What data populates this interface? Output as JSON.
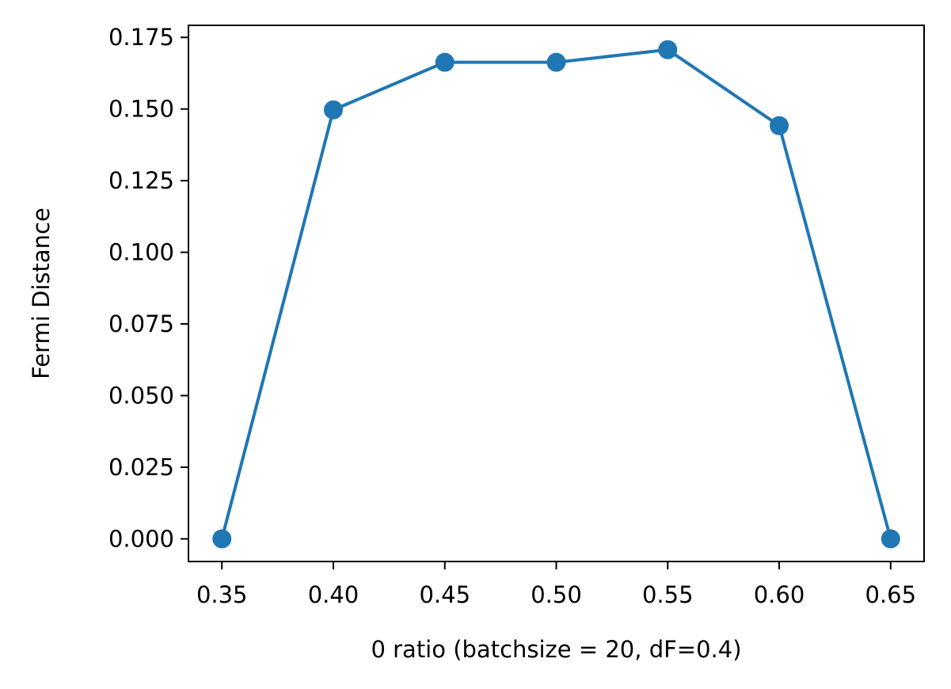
{
  "chart_data": {
    "type": "line",
    "title": "",
    "xlabel": "0 ratio (batchsize = 20, dF=0.4)",
    "ylabel": "Fermi Distance",
    "x": [
      0.35,
      0.4,
      0.45,
      0.5,
      0.55,
      0.6,
      0.65
    ],
    "series": [
      {
        "values": [
          0.0,
          0.1497,
          0.1663,
          0.1663,
          0.1707,
          0.1442,
          0.0
        ],
        "color": "#1f77b4",
        "marker": "circle"
      }
    ],
    "xlim": [
      0.335,
      0.665
    ],
    "ylim": [
      -0.0079,
      0.1792
    ],
    "xticks": [
      0.35,
      0.4,
      0.45,
      0.5,
      0.55,
      0.6,
      0.65
    ],
    "xtick_labels": [
      "0.35",
      "0.40",
      "0.45",
      "0.50",
      "0.55",
      "0.60",
      "0.65"
    ],
    "yticks": [
      0.0,
      0.025,
      0.05,
      0.075,
      0.1,
      0.125,
      0.15,
      0.175
    ],
    "ytick_labels": [
      "0.000",
      "0.025",
      "0.050",
      "0.075",
      "0.100",
      "0.125",
      "0.150",
      "0.175"
    ],
    "grid": false,
    "legend": "none"
  }
}
